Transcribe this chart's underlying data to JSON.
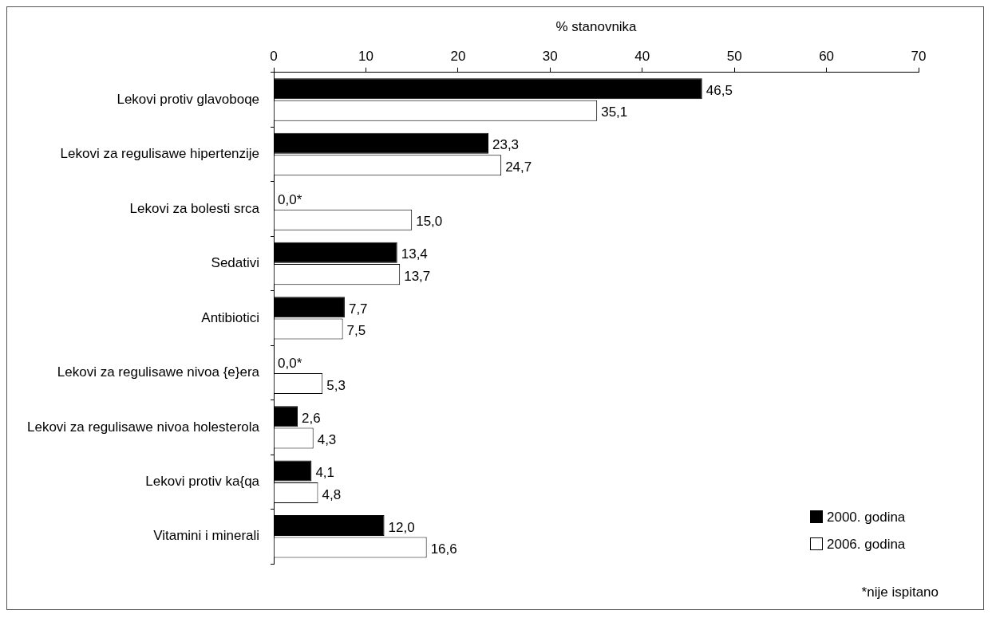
{
  "chart_data": {
    "type": "bar",
    "orientation": "horizontal",
    "xlabel": "% stanovnika",
    "categories": [
      "Lekovi protiv glavoboqe",
      "Lekovi za regulisawe hipertenzije",
      "Lekovi za bolesti srca",
      "Sedativi",
      "Antibiotici",
      "Lekovi za regulisawe nivoa {e}era",
      "Lekovi za regulisawe nivoa holesterola",
      "Lekovi protiv ka{qa",
      "Vitamini i minerali"
    ],
    "series": [
      {
        "name": "2000. godina",
        "color": "#000000",
        "values": [
          46.5,
          23.3,
          0,
          13.4,
          7.7,
          0,
          2.6,
          4.1,
          12.0
        ],
        "value_labels": [
          "46,5",
          "23,3",
          "0,0*",
          "13,4",
          "7,7",
          "0,0*",
          "2,6",
          "4,1",
          "12,0"
        ]
      },
      {
        "name": "2006. godina",
        "color": "#ffffff",
        "values": [
          35.1,
          24.7,
          15.0,
          13.7,
          7.5,
          5.3,
          4.3,
          4.8,
          16.6
        ],
        "value_labels": [
          "35,1",
          "24,7",
          "15,0",
          "13,7",
          "7,5",
          "5,3",
          "4,3",
          "4,8",
          "16,6"
        ]
      }
    ],
    "xlim": [
      0,
      70
    ],
    "xticks": [
      0,
      10,
      20,
      30,
      40,
      50,
      60,
      70
    ],
    "grid": false,
    "legend": "bottom right",
    "annotations": [
      "*nije ispitano"
    ]
  }
}
